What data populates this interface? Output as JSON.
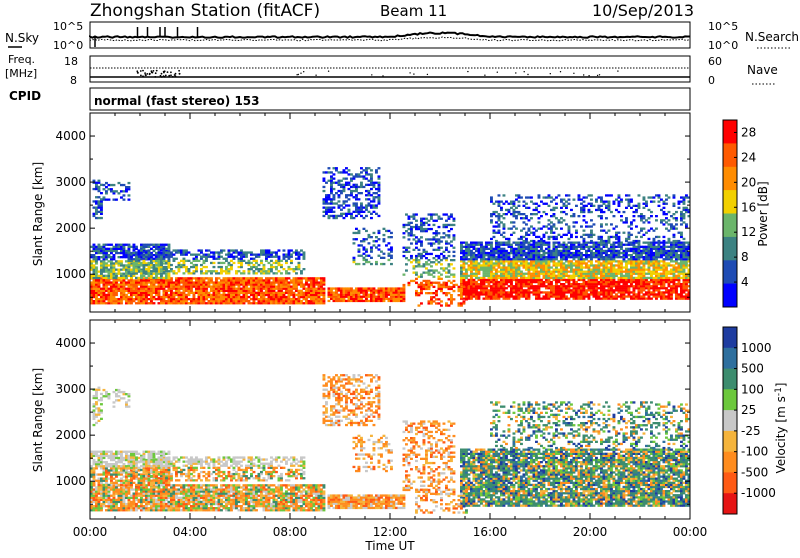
{
  "header": {
    "station": "Zhongshan Station (fitACF)",
    "beam": "Beam 11",
    "date": "10/Sep/2013"
  },
  "strip_labels": {
    "nsky": "N.Sky",
    "nsky_top": "10^5",
    "nsky_bottom": "10^0",
    "nsearch": "N.Search",
    "nsearch_top": "10^5",
    "nsearch_bottom": "10^0",
    "freq_line1": "Freq.",
    "freq_line2": "[MHz]",
    "freq_top": "18",
    "freq_bottom": "8",
    "nave": "Nave",
    "nave_top": "60",
    "nave_bottom": "0",
    "cpid": "CPID",
    "mode": "normal (fast stereo) 153"
  },
  "chart_data": [
    {
      "type": "heatmap",
      "name": "power",
      "ylabel": "Slant Range [km]",
      "ylim": [
        180,
        4500
      ],
      "y_ticks": [
        1000,
        2000,
        3000,
        4000
      ],
      "xlim_hours": [
        0,
        24
      ],
      "colorbar_label": "Power [dB]",
      "colorbar_ticks": [
        4,
        8,
        12,
        16,
        20,
        24,
        28
      ],
      "colorbar_range": [
        0,
        30
      ],
      "colors": [
        "#0000ff",
        "#1e4bb4",
        "#3c8282",
        "#6bb56b",
        "#f2d000",
        "#ff8c00",
        "#ff5a00",
        "#ff0000"
      ]
    },
    {
      "type": "heatmap",
      "name": "velocity",
      "ylabel": "Slant Range [km]",
      "ylim": [
        180,
        4500
      ],
      "y_ticks": [
        1000,
        2000,
        3000,
        4000
      ],
      "xlim_hours": [
        0,
        24
      ],
      "colorbar_label": "Velocity [m s^-1]",
      "colorbar_ticks": [
        "1000",
        "500",
        "100",
        "25",
        "-25",
        "-100",
        "-500",
        "-1000"
      ],
      "colors": [
        "#1e3ca0",
        "#2e6f9e",
        "#3c8c6e",
        "#6cc83c",
        "#c8c8c8",
        "#f5b43c",
        "#ff8c1e",
        "#ff5a14",
        "#e61414"
      ]
    }
  ],
  "xaxis": {
    "ticks": [
      "00:00",
      "04:00",
      "08:00",
      "12:00",
      "16:00",
      "20:00",
      "00:00"
    ],
    "label": "Time UT"
  }
}
